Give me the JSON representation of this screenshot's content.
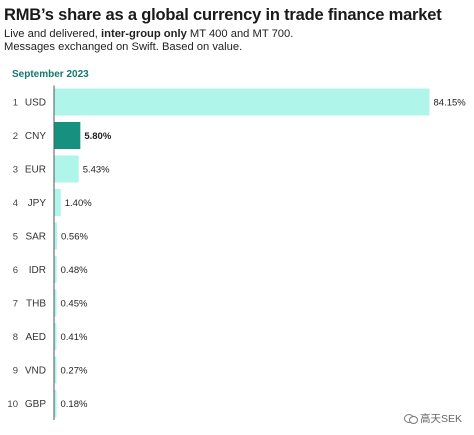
{
  "header": {
    "title": "RMB’s share as a global currency in trade finance market",
    "subtitle_pre": "Live and delivered, ",
    "subtitle_bold": "inter-group only",
    "subtitle_post": " MT 400 and MT 700.",
    "subtitle_line2": "Messages exchanged on Swift. Based on value.",
    "period": "September 2023"
  },
  "watermark": {
    "text": "高天SEK",
    "icon": "wechat-icon"
  },
  "colors": {
    "bar": "#b0f5ea",
    "highlight_bar": "#17917f",
    "axis": "#555555",
    "period": "#127a6c"
  },
  "chart_data": {
    "type": "bar",
    "orientation": "horizontal",
    "title": "RMB’s share as a global currency in trade finance market",
    "period": "September 2023",
    "categories": [
      "USD",
      "CNY",
      "EUR",
      "JPY",
      "SAR",
      "IDR",
      "THB",
      "AED",
      "VND",
      "GBP"
    ],
    "ranks": [
      "1",
      "2",
      "3",
      "4",
      "5",
      "6",
      "7",
      "8",
      "9",
      "10"
    ],
    "values": [
      84.15,
      5.8,
      5.43,
      1.4,
      0.56,
      0.48,
      0.45,
      0.41,
      0.27,
      0.18
    ],
    "value_labels": [
      "84.15%",
      "5.80%",
      "5.43%",
      "1.40%",
      "0.56%",
      "0.48%",
      "0.45%",
      "0.41%",
      "0.27%",
      "0.18%"
    ],
    "highlight": "CNY",
    "unit": "%",
    "xlim": [
      0,
      84.15
    ],
    "grid": false,
    "legend": "none"
  }
}
